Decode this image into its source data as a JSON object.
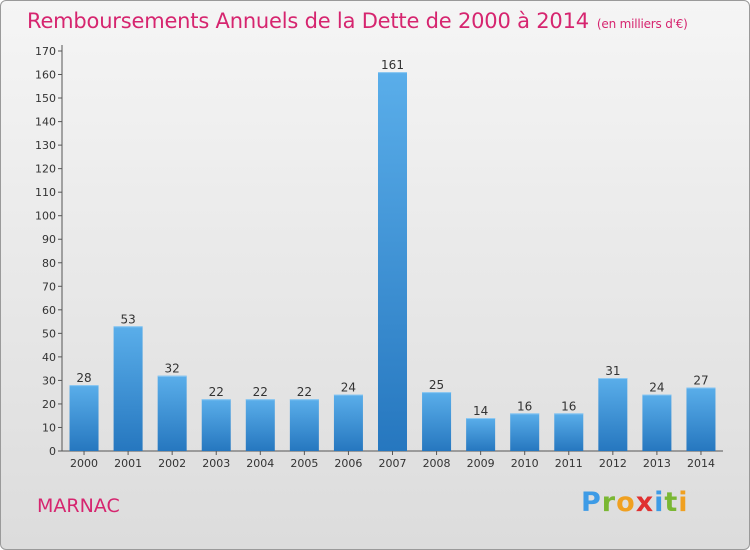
{
  "chart_data": {
    "type": "bar",
    "title": "Remboursements Annuels de la Dette de 2000 à 2014",
    "subtitle": "(en milliers d'€)",
    "categories": [
      "2000",
      "2001",
      "2002",
      "2003",
      "2004",
      "2005",
      "2006",
      "2007",
      "2008",
      "2009",
      "2010",
      "2011",
      "2012",
      "2013",
      "2014"
    ],
    "values": [
      28,
      53,
      32,
      22,
      22,
      22,
      24,
      161,
      25,
      14,
      16,
      16,
      31,
      24,
      27
    ],
    "ylim": [
      0,
      170
    ],
    "yticks": [
      0,
      10,
      20,
      30,
      40,
      50,
      60,
      70,
      80,
      90,
      100,
      110,
      120,
      130,
      140,
      150,
      160,
      170
    ],
    "xlabel": "",
    "ylabel": "",
    "grid": false,
    "bar_color": "#3a8fd8"
  },
  "place": "MARNAC",
  "logo": {
    "text": "Proxiti"
  }
}
